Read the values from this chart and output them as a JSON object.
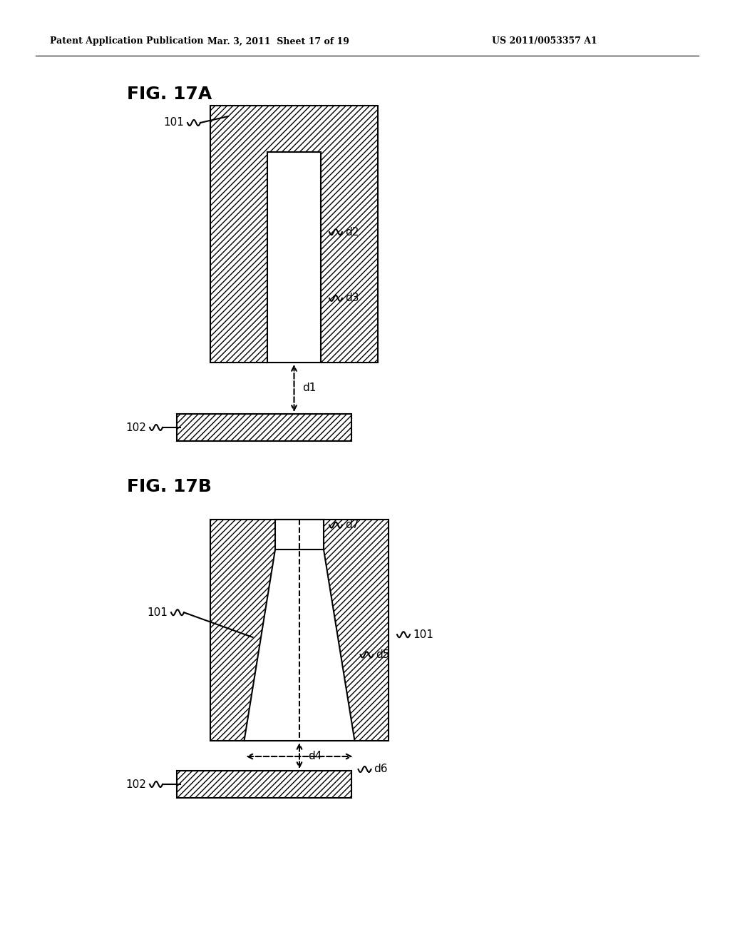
{
  "header_left": "Patent Application Publication",
  "header_mid": "Mar. 3, 2011  Sheet 17 of 19",
  "header_right": "US 2011/0053357 A1",
  "fig17a_label": "FIG. 17A",
  "fig17b_label": "FIG. 17B",
  "label_101a": "101",
  "label_102a": "102",
  "label_d1": "d1",
  "label_d2": "d2",
  "label_d3": "d3",
  "label_101b_left": "101",
  "label_101b_right": "101",
  "label_102b": "102",
  "label_d4": "d4",
  "label_d5": "d5",
  "label_d6": "d6",
  "label_d7": "d7",
  "bg_color": "#ffffff",
  "line_color": "#000000",
  "hatch_pattern": "////"
}
